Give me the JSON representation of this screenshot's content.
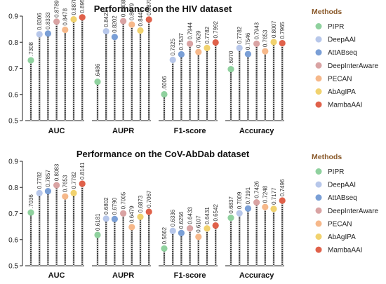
{
  "legend": {
    "title": "Methods"
  },
  "colors": {
    "PIPR": "#8fd19e",
    "DeepAAI": "#b7c7ea",
    "AttABseq": "#7a9fd6",
    "DeepInterAware": "#d9a3a3",
    "PECAN": "#f6b88a",
    "AbAgIPA": "#f1d26e",
    "MambaAAI": "#e0614a"
  },
  "chart_data": [
    {
      "type": "lollipop",
      "title": "Performance on the HIV dataset",
      "categories": [
        "AUC",
        "AUPR",
        "F1-score",
        "Accuracy"
      ],
      "ylim": [
        0.5,
        0.9
      ],
      "yticks": [
        "0.5",
        "0.6",
        "0.7",
        "0.8",
        "0.9"
      ],
      "series": [
        {
          "name": "PIPR",
          "values": [
            0.7308,
            0.6486,
            0.6006,
            0.697
          ],
          "labels": [
            ".7308",
            ".6486",
            ".6006",
            ".6970"
          ]
        },
        {
          "name": "DeepAAI",
          "values": [
            0.8306,
            0.8421,
            0.7325,
            0.7782
          ],
          "labels": [
            "0.8306",
            "0.8421",
            "0.7325",
            "0.7782"
          ]
        },
        {
          "name": "AttABseq",
          "values": [
            0.8333,
            0.8202,
            0.7537,
            0.7546
          ],
          "labels": [
            "0.8333",
            "0.8202",
            "0.7537",
            "0.7546"
          ]
        },
        {
          "name": "DeepInterAware",
          "values": [
            0.8789,
            0.8808,
            0.7944,
            0.7943
          ],
          "labels": [
            "0.8789",
            "0.8808",
            "0.7944",
            "0.7943"
          ]
        },
        {
          "name": "PECAN",
          "values": [
            0.8478,
            0.8679,
            0.7629,
            0.7653
          ],
          "labels": [
            "0.8478",
            "0.8679",
            "0.7629",
            "0.7653"
          ]
        },
        {
          "name": "AbAgIPA",
          "values": [
            0.8878,
            0.8449,
            0.7782,
            0.8007
          ],
          "labels": [
            "0.8878",
            "0.8449",
            "0.7782",
            "0.8007"
          ]
        },
        {
          "name": "MambaAAI",
          "values": [
            0.8955,
            0.887,
            0.7992,
            0.7965
          ],
          "labels": [
            "0.8955",
            "0.8870",
            "0.7992",
            "0.7965"
          ]
        }
      ]
    },
    {
      "type": "lollipop",
      "title": "Performance on the CoV-AbDab dataset",
      "categories": [
        "AUC",
        "AUPR",
        "F1-score",
        "Accuracy"
      ],
      "ylim": [
        0.5,
        0.9
      ],
      "yticks": [
        "0.5",
        "0.6",
        "0.7",
        "0.8",
        "0.9"
      ],
      "series": [
        {
          "name": "PIPR",
          "values": [
            0.7036,
            0.6181,
            0.5662,
            0.6837
          ],
          "labels": [
            ".7036",
            "0.6181",
            "0.5662",
            "0.6837"
          ]
        },
        {
          "name": "DeepAAI",
          "values": [
            0.7782,
            0.6802,
            0.6336,
            0.7009
          ],
          "labels": [
            "0.7782",
            "0.6802",
            "0.6336",
            "0.7009"
          ]
        },
        {
          "name": "AttABseq",
          "values": [
            0.7857,
            0.679,
            0.6256,
            0.7191
          ],
          "labels": [
            "0.7857",
            "0.6790",
            "0.6256",
            "0.7191"
          ]
        },
        {
          "name": "DeepInterAware",
          "values": [
            0.8083,
            0.7005,
            0.6433,
            0.7426
          ],
          "labels": [
            "0.8083",
            "0.7005",
            "0.6433",
            "0.7426"
          ]
        },
        {
          "name": "PECAN",
          "values": [
            0.7653,
            0.6479,
            0.6107,
            0.7248
          ],
          "labels": [
            "0.7653",
            "0.6479",
            "0.6107",
            "0.7248"
          ]
        },
        {
          "name": "AbAgIPA",
          "values": [
            0.7782,
            0.6873,
            0.6431,
            0.7177
          ],
          "labels": [
            "0.7782",
            "0.6873",
            "0.6431",
            "0.7177"
          ]
        },
        {
          "name": "MambaAAI",
          "values": [
            0.8141,
            0.7067,
            0.6542,
            0.7496
          ],
          "labels": [
            "0.8141",
            "0.7067",
            "0.6542",
            "0.7496"
          ]
        }
      ]
    }
  ]
}
